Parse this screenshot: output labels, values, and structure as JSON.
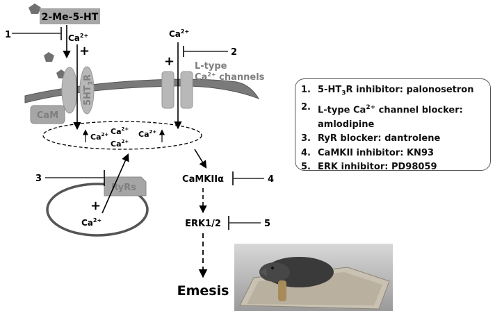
{
  "diagram": {
    "agonist": "2-Me-5-HT",
    "ca": "Ca",
    "ca_sup": "2+",
    "receptor": "5HT",
    "receptor_sub": "3",
    "receptor_r": "R",
    "l_type_line1": "L-type",
    "l_type_line2_ca": "Ca",
    "l_type_line2_rest": " channels",
    "cam": "CaM",
    "ryrs": "RyRs",
    "camkii": "CaMKIIα",
    "erk": "ERK1/2",
    "emesis": "Emesis",
    "plus": "+",
    "inhibitor_numbers": [
      "1",
      "2",
      "3",
      "4",
      "5"
    ]
  },
  "legend": {
    "items": [
      {
        "num": "1.",
        "text_a": "5-HT",
        "text_sub": "3",
        "text_b": "R inhibitor: palonosetron"
      },
      {
        "num": "2.",
        "text_a": "L-type Ca",
        "text_sup": "2+",
        "text_b": " channel blocker:",
        "text_cont": "amlodipine"
      },
      {
        "num": "3.",
        "text_a": "RyR blocker: dantrolene"
      },
      {
        "num": "4.",
        "text_a": "CaMKII inhibitor: KN93"
      },
      {
        "num": "5.",
        "text_a": "ERK inhibitor: PD98059"
      }
    ]
  },
  "colors": {
    "membrane": "#7a7a7a",
    "protein": "#b8b8b8",
    "box_gray": "#a6a6a6",
    "text_gray": "#7f7f7f"
  }
}
